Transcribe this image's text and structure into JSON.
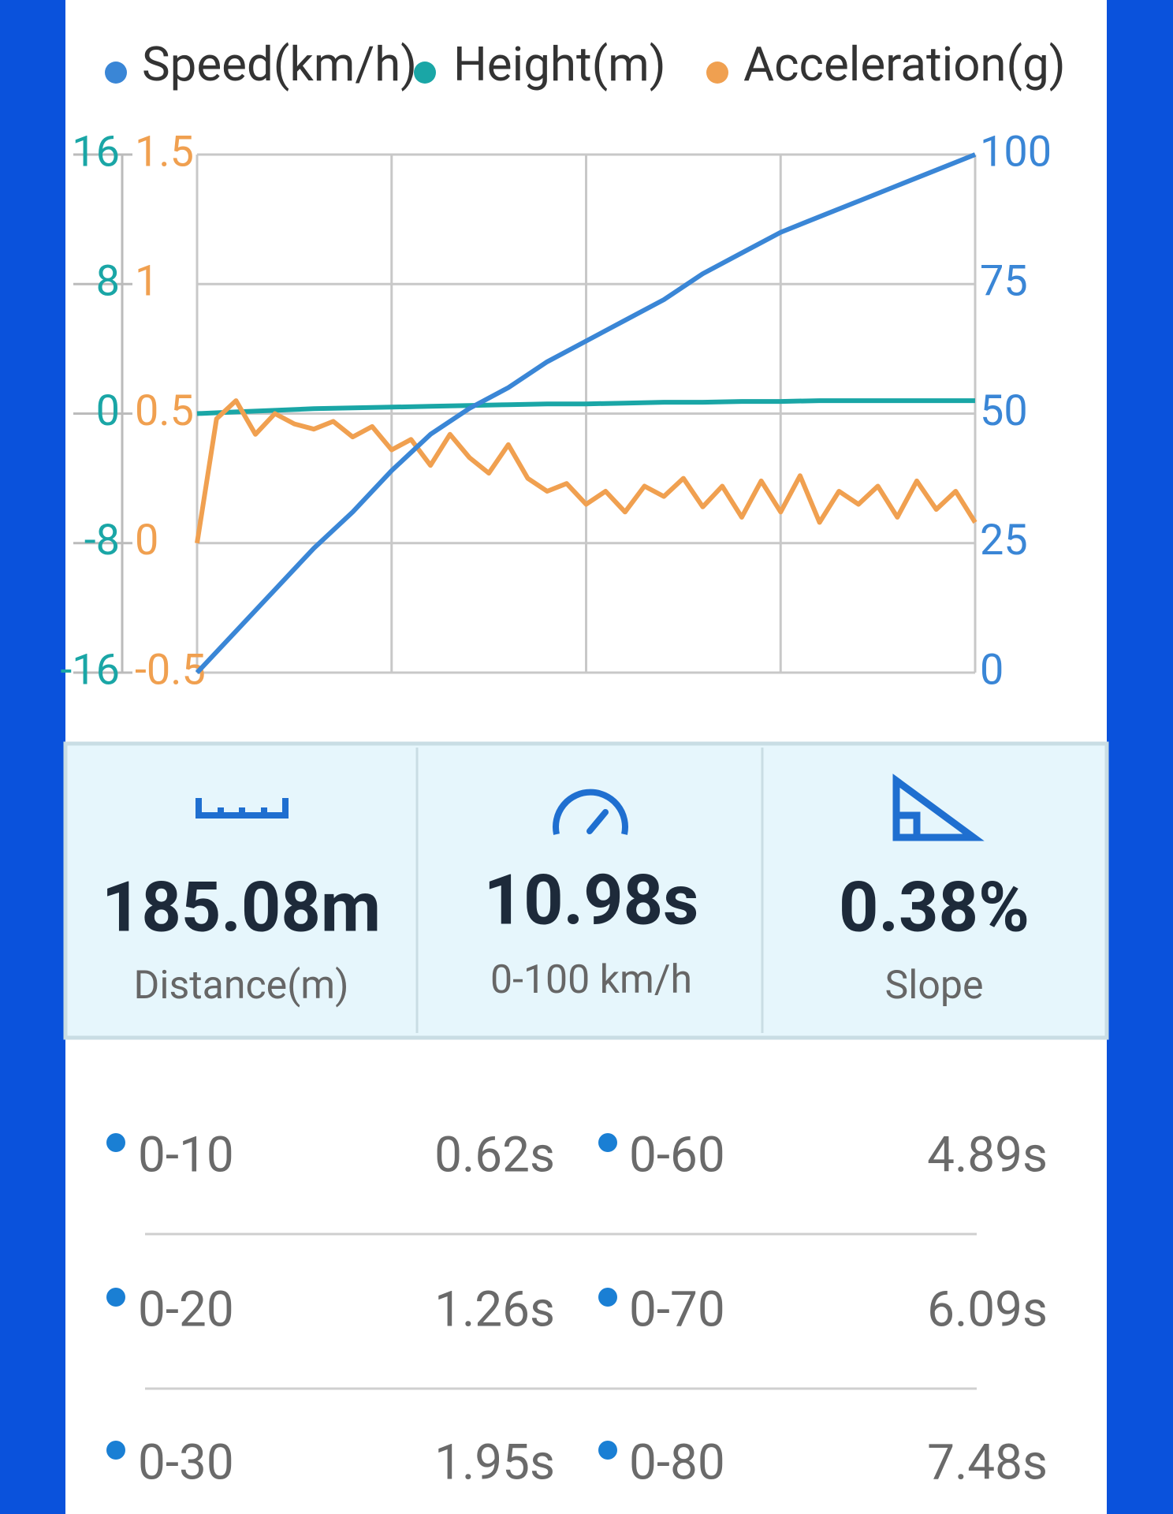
{
  "chart_data": {
    "type": "line",
    "series": [
      {
        "name": "Speed(km/h)",
        "color": "#3a86d6",
        "values": [
          0,
          8,
          16,
          24,
          31,
          39,
          46,
          51,
          55,
          60,
          64,
          68,
          72,
          77,
          81,
          85,
          88,
          91,
          94,
          97,
          100
        ]
      },
      {
        "name": "Height(m)",
        "color": "#1aa6a6",
        "axis": "y3",
        "values": [
          0,
          0.1,
          0.2,
          0.3,
          0.35,
          0.4,
          0.45,
          0.5,
          0.55,
          0.6,
          0.6,
          0.65,
          0.7,
          0.7,
          0.75,
          0.75,
          0.8,
          0.8,
          0.8,
          0.8,
          0.8
        ]
      },
      {
        "name": "Acceleration(g)",
        "color": "#f0a050",
        "axis": "y2",
        "values": [
          0,
          0.48,
          0.55,
          0.42,
          0.5,
          0.46,
          0.44,
          0.47,
          0.41,
          0.45,
          0.36,
          0.4,
          0.3,
          0.42,
          0.33,
          0.27,
          0.38,
          0.25,
          0.2,
          0.23,
          0.15,
          0.2,
          0.12,
          0.22,
          0.18,
          0.25,
          0.14,
          0.22,
          0.1,
          0.24,
          0.12,
          0.26,
          0.08,
          0.2,
          0.15,
          0.22,
          0.1,
          0.24,
          0.13,
          0.2,
          0.08
        ]
      }
    ],
    "ylim": [
      0,
      100
    ],
    "yticks": [
      0,
      25,
      50,
      75,
      100
    ],
    "y2lim": [
      -0.5,
      1.5
    ],
    "y2ticks": [
      -0.5,
      0,
      0.5,
      1,
      1.5
    ],
    "y3lim": [
      -16,
      16
    ],
    "y3ticks": [
      -16,
      -8,
      0,
      8,
      16
    ],
    "grid": true
  },
  "stats": [
    {
      "value": "185.08m",
      "label": "Distance(m)"
    },
    {
      "value": "10.98s",
      "label": "0-100 km/h"
    },
    {
      "value": "0.38%",
      "label": "Slope"
    }
  ],
  "splits": {
    "rows": [
      [
        "0-10",
        "0.62s",
        "0-60",
        "4.89s"
      ],
      [
        "0-20",
        "1.26s",
        "0-70",
        "6.09s"
      ],
      [
        "0-30",
        "1.95s",
        "0-80",
        "7.48s"
      ]
    ]
  }
}
